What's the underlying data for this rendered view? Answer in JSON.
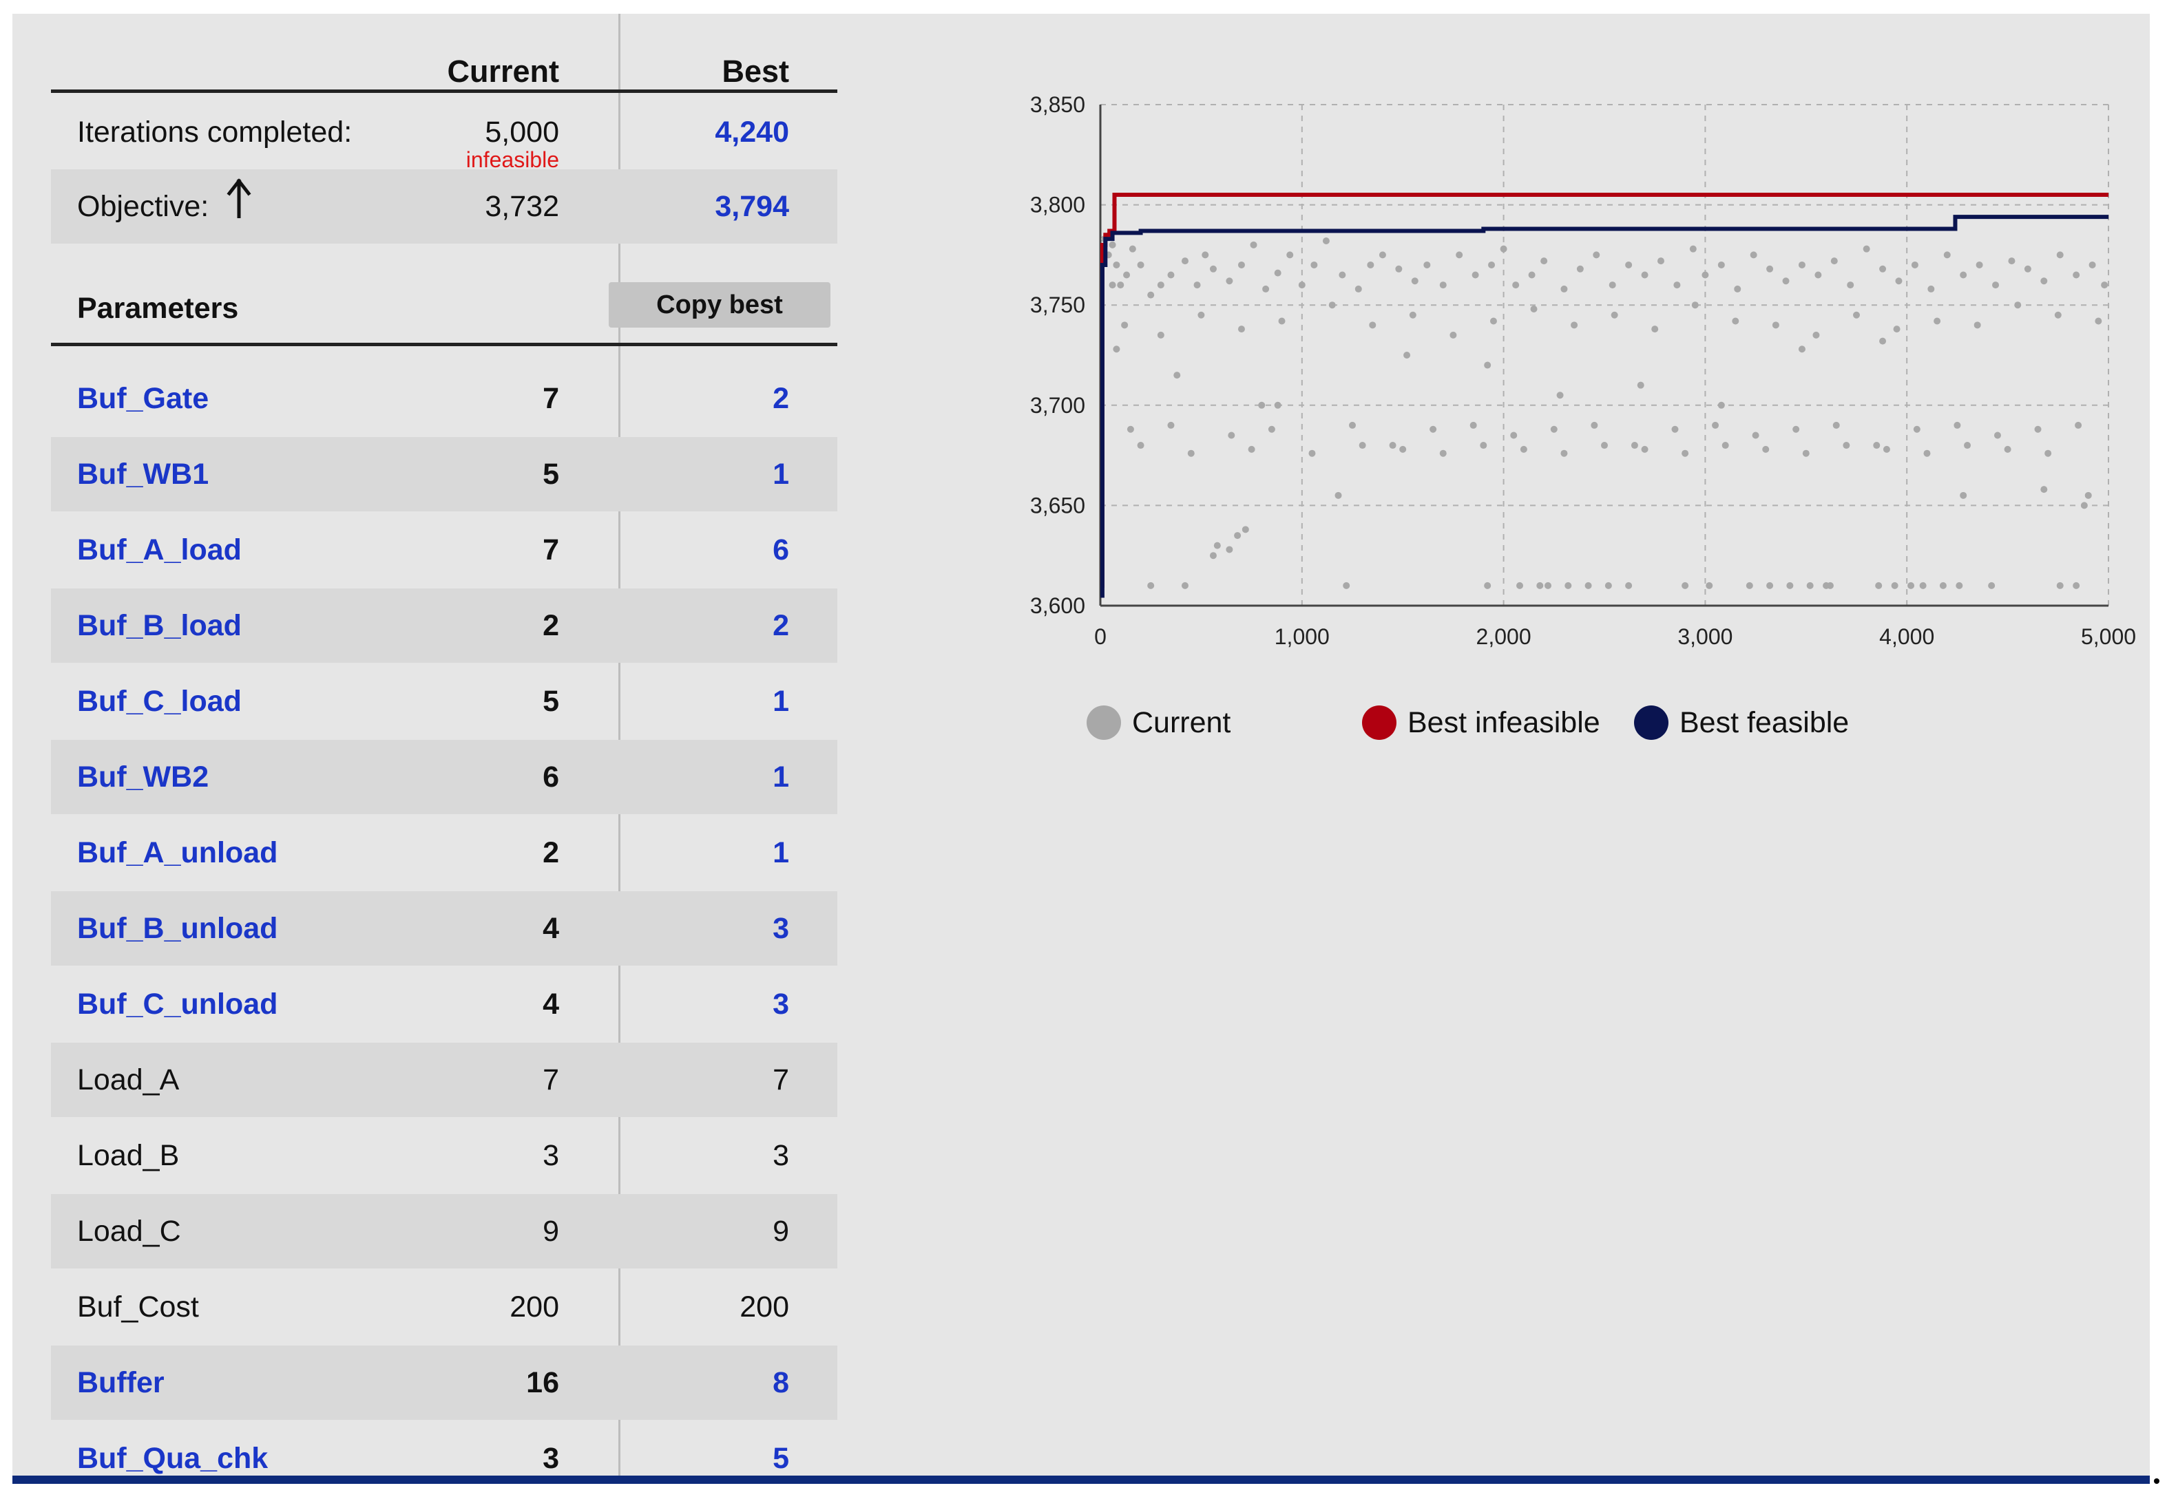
{
  "table": {
    "headers": {
      "current": "Current",
      "best": "Best"
    },
    "iterations": {
      "label": "Iterations completed:",
      "current": "5,000",
      "best": "4,240",
      "status": "infeasible"
    },
    "objective": {
      "label": "Objective:",
      "current": "3,732",
      "best": "3,794",
      "direction_icon": "arrow-up-icon"
    },
    "parameters_label": "Parameters",
    "copy_best_label": "Copy best",
    "params": [
      {
        "name": "Buf_Gate",
        "current": "7",
        "best": "2",
        "link": true
      },
      {
        "name": "Buf_WB1",
        "current": "5",
        "best": "1",
        "link": true
      },
      {
        "name": "Buf_A_load",
        "current": "7",
        "best": "6",
        "link": true
      },
      {
        "name": "Buf_B_load",
        "current": "2",
        "best": "2",
        "link": true
      },
      {
        "name": "Buf_C_load",
        "current": "5",
        "best": "1",
        "link": true
      },
      {
        "name": "Buf_WB2",
        "current": "6",
        "best": "1",
        "link": true
      },
      {
        "name": "Buf_A_unload",
        "current": "2",
        "best": "1",
        "link": true
      },
      {
        "name": "Buf_B_unload",
        "current": "4",
        "best": "3",
        "link": true
      },
      {
        "name": "Buf_C_unload",
        "current": "4",
        "best": "3",
        "link": true
      },
      {
        "name": "Load_A",
        "current": "7",
        "best": "7",
        "link": false
      },
      {
        "name": "Load_B",
        "current": "3",
        "best": "3",
        "link": false
      },
      {
        "name": "Load_C",
        "current": "9",
        "best": "9",
        "link": false
      },
      {
        "name": "Buf_Cost",
        "current": "200",
        "best": "200",
        "link": false
      },
      {
        "name": "Buffer",
        "current": "16",
        "best": "8",
        "link": true
      },
      {
        "name": "Buf_Qua_chk",
        "current": "3",
        "best": "5",
        "link": true
      }
    ]
  },
  "colors": {
    "link": "#1a36c8",
    "infeasible": "#e01818",
    "current": "#a8a8a8",
    "best_infeasible": "#b00010",
    "best_feasible": "#0a1450"
  },
  "chart_data": {
    "type": "line",
    "xlim": [
      0,
      5000
    ],
    "ylim": [
      3600,
      3850
    ],
    "x_ticks": [
      0,
      1000,
      2000,
      3000,
      4000,
      5000
    ],
    "x_tick_labels": [
      "0",
      "1,000",
      "2,000",
      "3,000",
      "4,000",
      "5,000"
    ],
    "y_ticks": [
      3600,
      3650,
      3700,
      3750,
      3800,
      3850
    ],
    "y_tick_labels": [
      "3,600",
      "3,650",
      "3,700",
      "3,750",
      "3,800",
      "3,850"
    ],
    "grid": true,
    "legend_position": "bottom",
    "series": [
      {
        "name": "Current",
        "kind": "scatter",
        "color": "#a8a8a8",
        "x": [
          20,
          40,
          60,
          80,
          100,
          130,
          160,
          200,
          250,
          300,
          350,
          420,
          480,
          520,
          560,
          640,
          700,
          760,
          820,
          880,
          940,
          1000,
          1060,
          1120,
          1200,
          1280,
          1340,
          1400,
          1480,
          1560,
          1620,
          1700,
          1780,
          1860,
          1940,
          2000,
          2060,
          2140,
          2200,
          2300,
          2380,
          2460,
          2540,
          2620,
          2700,
          2780,
          2860,
          2940,
          3000,
          3080,
          3160,
          3240,
          3320,
          3400,
          3480,
          3560,
          3640,
          3720,
          3800,
          3880,
          3960,
          4040,
          4120,
          4200,
          4280,
          4360,
          4440,
          4520,
          4600,
          4680,
          4760,
          4840,
          4920,
          4980,
          120,
          300,
          500,
          700,
          900,
          1150,
          1350,
          1550,
          1750,
          1950,
          2150,
          2350,
          2550,
          2750,
          2950,
          3150,
          3350,
          3550,
          3750,
          3950,
          4150,
          4350,
          4550,
          4750,
          4950,
          150,
          350,
          650,
          850,
          1250,
          1450,
          1650,
          1850,
          2050,
          2250,
          2450,
          2650,
          2850,
          3050,
          3250,
          3450,
          3650,
          3850,
          4050,
          4250,
          4450,
          4650,
          4850,
          200,
          450,
          750,
          1050,
          1300,
          1500,
          1700,
          1900,
          2100,
          2300,
          2500,
          2700,
          2900,
          3100,
          3300,
          3500,
          3700,
          3900,
          4100,
          4300,
          4500,
          4700,
          4900,
          80,
          380,
          580,
          680,
          880,
          1180,
          1520,
          1920,
          2280,
          2680,
          3080,
          3480,
          3880,
          4280,
          4680,
          4880,
          60,
          250,
          420,
          560,
          640,
          720,
          800,
          1220,
          2220,
          2520,
          3020,
          3520,
          3620,
          4020,
          4420,
          4760,
          4840,
          1920,
          2080,
          2180,
          2320,
          2420,
          2620,
          2900,
          3220,
          3320,
          3420,
          3600,
          3860,
          3940,
          4080,
          4180,
          4260
        ],
        "y": [
          3783,
          3775,
          3780,
          3770,
          3760,
          3765,
          3778,
          3770,
          3755,
          3760,
          3765,
          3772,
          3760,
          3775,
          3768,
          3762,
          3770,
          3780,
          3758,
          3766,
          3775,
          3760,
          3770,
          3782,
          3765,
          3758,
          3770,
          3775,
          3768,
          3762,
          3770,
          3760,
          3775,
          3765,
          3770,
          3778,
          3760,
          3765,
          3772,
          3758,
          3768,
          3775,
          3760,
          3770,
          3765,
          3772,
          3760,
          3778,
          3765,
          3770,
          3758,
          3775,
          3768,
          3762,
          3770,
          3765,
          3772,
          3760,
          3778,
          3768,
          3762,
          3770,
          3758,
          3775,
          3765,
          3770,
          3760,
          3772,
          3768,
          3762,
          3775,
          3765,
          3770,
          3760,
          3740,
          3735,
          3745,
          3738,
          3742,
          3750,
          3740,
          3745,
          3735,
          3742,
          3748,
          3740,
          3745,
          3738,
          3750,
          3742,
          3740,
          3735,
          3745,
          3738,
          3742,
          3740,
          3750,
          3745,
          3742,
          3688,
          3690,
          3685,
          3688,
          3690,
          3680,
          3688,
          3690,
          3685,
          3688,
          3690,
          3680,
          3688,
          3690,
          3685,
          3688,
          3690,
          3680,
          3688,
          3690,
          3685,
          3688,
          3690,
          3680,
          3676,
          3678,
          3676,
          3680,
          3678,
          3676,
          3680,
          3678,
          3676,
          3680,
          3678,
          3676,
          3680,
          3678,
          3676,
          3680,
          3678,
          3676,
          3680,
          3678,
          3676,
          3655,
          3728,
          3715,
          3630,
          3635,
          3700,
          3655,
          3725,
          3720,
          3705,
          3710,
          3700,
          3728,
          3732,
          3655,
          3658,
          3650,
          3760,
          3610,
          3610,
          3625,
          3628,
          3638,
          3700,
          3610,
          3610,
          3610,
          3610,
          3610,
          3610,
          3610,
          3610,
          3610,
          3610,
          3610,
          3610,
          3610,
          3610,
          3610,
          3610,
          3610,
          3610,
          3610,
          3610,
          3610,
          3610,
          3610,
          3610,
          3610,
          3610
        ]
      },
      {
        "name": "Best infeasible",
        "kind": "step",
        "color": "#b00010",
        "x": [
          0,
          10,
          25,
          45,
          70,
          5000
        ],
        "y": [
          3610,
          3780,
          3785,
          3787,
          3805,
          3805
        ]
      },
      {
        "name": "Best feasible",
        "kind": "step",
        "color": "#0a1450",
        "x": [
          0,
          10,
          25,
          60,
          200,
          1900,
          4240,
          5000
        ],
        "y": [
          3605,
          3770,
          3783,
          3786,
          3787,
          3788,
          3794,
          3794
        ]
      }
    ]
  }
}
